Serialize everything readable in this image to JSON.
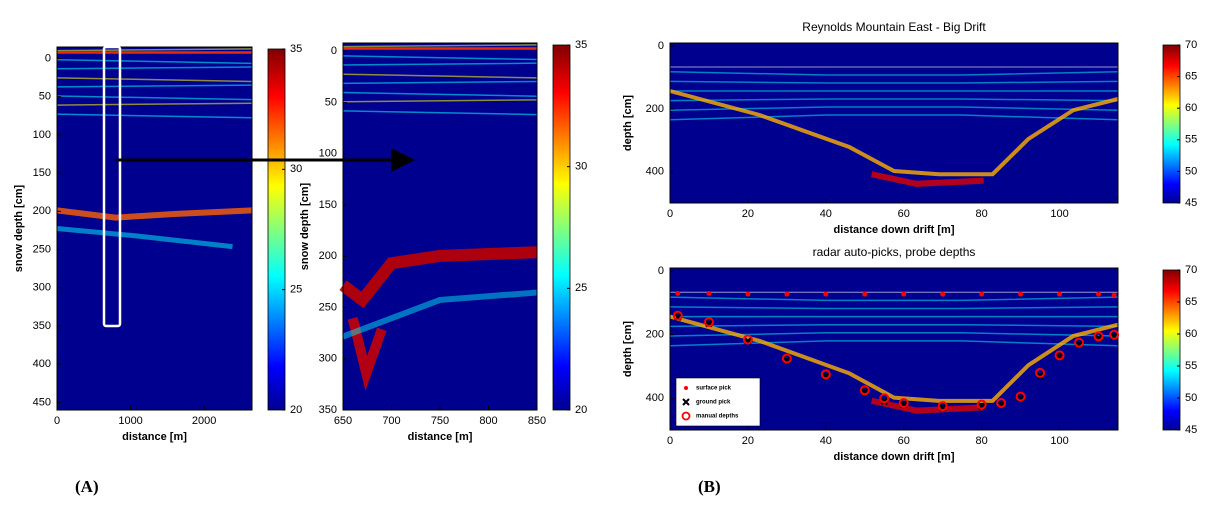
{
  "panel_labels": [
    "(A)",
    "(B)"
  ],
  "chart_data": [
    {
      "type": "heatmap",
      "xlabel": "distance [m]",
      "ylabel": "snow depth [cm]",
      "xlim": [
        0,
        2650
      ],
      "xticks": [
        0,
        1000,
        2000
      ],
      "ylim": [
        -15,
        460
      ],
      "y_inverted": true,
      "yticks": [
        0,
        50,
        100,
        150,
        200,
        250,
        300,
        350,
        400,
        450
      ],
      "clim": [
        20,
        35
      ],
      "cticks": [
        20,
        25,
        30,
        35
      ]
    },
    {
      "type": "heatmap",
      "xlabel": "distance [m]",
      "ylabel": "snow depth [cm]",
      "xlim": [
        650,
        850
      ],
      "xticks": [
        650,
        700,
        750,
        800,
        850
      ],
      "ylim": [
        -8,
        350
      ],
      "y_inverted": true,
      "yticks": [
        0,
        50,
        100,
        150,
        200,
        250,
        300,
        350
      ],
      "clim": [
        20,
        35
      ],
      "cticks": [
        20,
        25,
        30,
        35
      ]
    },
    {
      "type": "heatmap",
      "title": "Reynolds Mountain East - Big Drift",
      "xlabel": "distance down drift [m]",
      "ylabel": "depth [cm]",
      "xlim": [
        0,
        115
      ],
      "xticks": [
        0,
        20,
        40,
        60,
        80,
        100
      ],
      "ylim": [
        -10,
        500
      ],
      "y_inverted": true,
      "yticks": [
        0,
        200,
        400
      ],
      "clim": [
        45,
        70
      ],
      "cticks": [
        45,
        50,
        55,
        60,
        65,
        70
      ]
    },
    {
      "type": "heatmap",
      "title": "radar auto-picks, probe depths",
      "xlabel": "distance down drift [m]",
      "ylabel": "depth [cm]",
      "xlim": [
        0,
        115
      ],
      "xticks": [
        0,
        20,
        40,
        60,
        80,
        100
      ],
      "ylim": [
        -10,
        500
      ],
      "y_inverted": true,
      "yticks": [
        0,
        200,
        400
      ],
      "clim": [
        45,
        70
      ],
      "cticks": [
        45,
        50,
        55,
        60,
        65,
        70
      ],
      "legend": "lower left",
      "series": [
        {
          "name": "surface pick",
          "marker": "dot",
          "color": "#ff0000",
          "x": [
            2,
            10,
            20,
            30,
            40,
            50,
            60,
            70,
            80,
            90,
            100,
            110,
            114
          ],
          "values": [
            70,
            70,
            72,
            72,
            72,
            72,
            72,
            72,
            72,
            72,
            72,
            72,
            75
          ]
        },
        {
          "name": "ground pick",
          "marker": "x",
          "color": "#000000",
          "x": [
            2,
            10,
            20,
            30,
            40,
            50,
            55,
            60,
            70,
            80,
            85,
            90,
            95,
            100,
            105,
            110,
            114
          ],
          "values": [
            145,
            165,
            220,
            280,
            330,
            380,
            410,
            420,
            430,
            425,
            420,
            400,
            330,
            270,
            230,
            210,
            205
          ]
        },
        {
          "name": "manual depths",
          "marker": "circle",
          "color": "#ff0000",
          "x": [
            2,
            10,
            20,
            30,
            40,
            50,
            55,
            60,
            70,
            80,
            85,
            90,
            95,
            100,
            105,
            110,
            114
          ],
          "values": [
            140,
            160,
            215,
            275,
            325,
            375,
            400,
            415,
            425,
            420,
            415,
            395,
            320,
            265,
            225,
            205,
            200
          ]
        }
      ]
    }
  ]
}
